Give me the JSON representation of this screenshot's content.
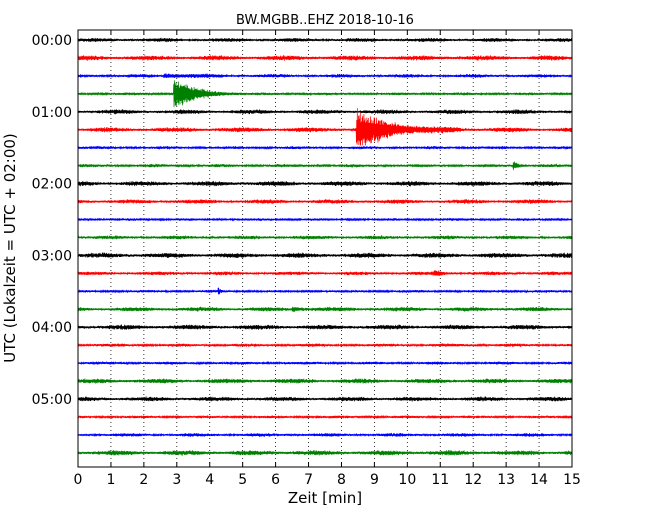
{
  "chart_data": {
    "type": "line",
    "title": "BW.MGBB..EHZ 2018-10-16",
    "xlabel": "Zeit  [min]",
    "ylabel": "UTC (Lokalzeit = UTC + 02:00)",
    "xlim": [
      0,
      15
    ],
    "x_ticks": [
      "0",
      "1",
      "2",
      "3",
      "4",
      "5",
      "6",
      "7",
      "8",
      "9",
      "10",
      "11",
      "12",
      "13",
      "14",
      "15"
    ],
    "y_ticks": [
      "00:00",
      "01:00",
      "02:00",
      "03:00",
      "04:00",
      "05:00"
    ],
    "grid": true,
    "trace_interval_minutes": 15,
    "trace_colors": [
      "#000000",
      "#ff0000",
      "#0000ff",
      "#008000"
    ],
    "events": [
      {
        "row": 3,
        "start_min": 2.9,
        "duration_min": 2.2,
        "peak_amplitude": 3.0
      },
      {
        "row": 5,
        "start_min": 8.45,
        "duration_min": 3.2,
        "peak_amplitude": 3.8
      },
      {
        "row": 7,
        "start_min": 13.2,
        "duration_min": 0.6,
        "peak_amplitude": 0.9
      },
      {
        "row": 14,
        "start_min": 4.25,
        "duration_min": 0.2,
        "peak_amplitude": 0.7
      },
      {
        "row": 13,
        "start_min": 10.8,
        "duration_min": 0.8,
        "peak_amplitude": 0.5
      },
      {
        "row": 15,
        "start_min": 6.5,
        "duration_min": 1.2,
        "peak_amplitude": 0.4
      },
      {
        "row": 2,
        "start_min": 2.6,
        "duration_min": 2.5,
        "peak_amplitude": 0.35
      }
    ]
  }
}
